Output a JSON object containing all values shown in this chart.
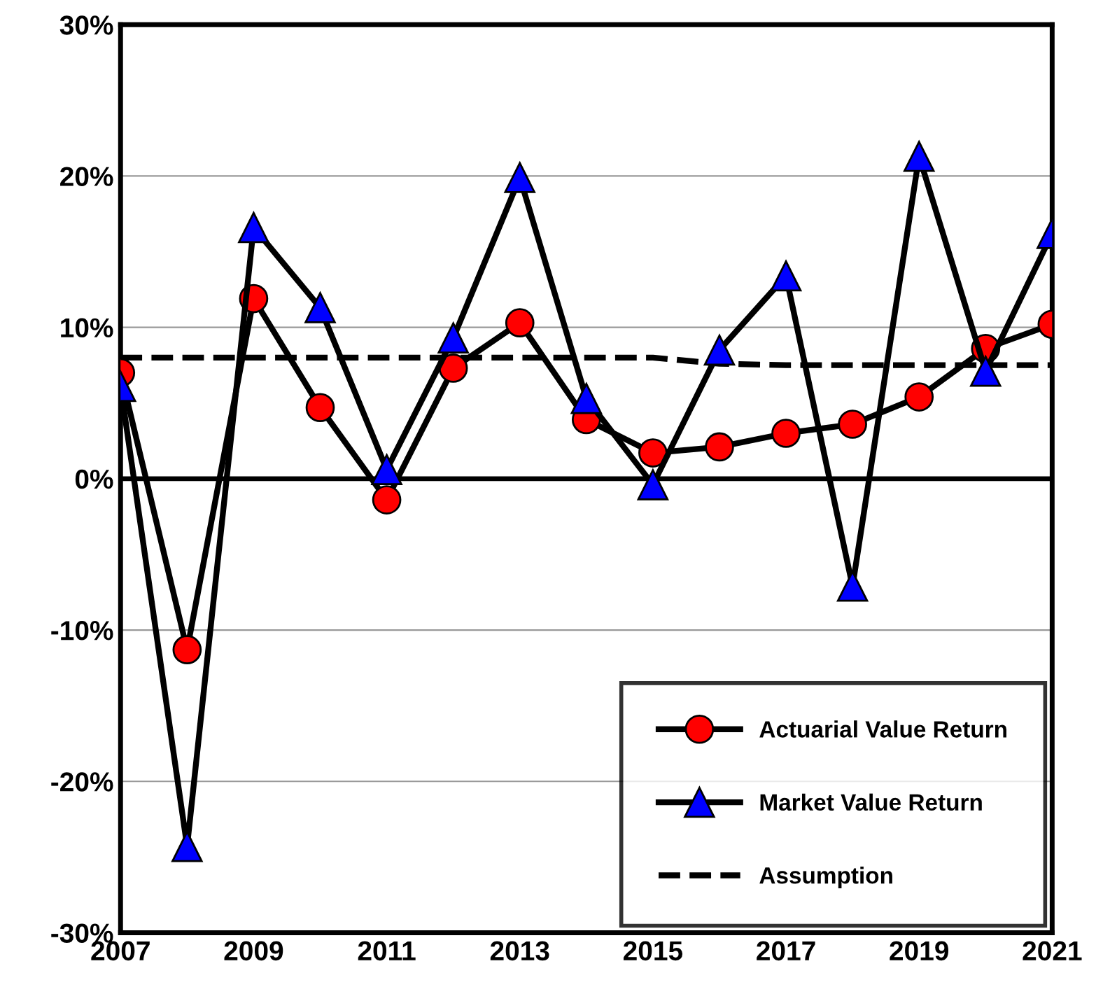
{
  "chart_data": {
    "type": "line",
    "x": [
      2007,
      2008,
      2009,
      2010,
      2011,
      2012,
      2013,
      2014,
      2015,
      2016,
      2017,
      2018,
      2019,
      2020,
      2021
    ],
    "series": [
      {
        "name": "Actuarial Value Return",
        "color": "#ff0000",
        "marker": "circle",
        "line_style": "solid",
        "values": [
          7.0,
          -11.3,
          11.9,
          4.7,
          -1.4,
          7.3,
          10.3,
          3.9,
          1.7,
          2.1,
          3.0,
          3.6,
          5.4,
          8.6,
          10.2
        ]
      },
      {
        "name": "Market Value Return",
        "color": "#0000ff",
        "marker": "triangle",
        "line_style": "solid",
        "values": [
          6.1,
          -24.3,
          16.6,
          11.3,
          0.6,
          9.3,
          19.9,
          5.3,
          -0.4,
          8.5,
          13.4,
          -7.1,
          21.3,
          7.1,
          16.2
        ]
      },
      {
        "name": "Assumption",
        "color": "#000000",
        "marker": "none",
        "line_style": "dashed",
        "values": [
          8.0,
          8.0,
          8.0,
          8.0,
          8.0,
          8.0,
          8.0,
          8.0,
          8.0,
          7.6,
          7.5,
          7.5,
          7.5,
          7.5,
          7.5
        ]
      }
    ],
    "xlim": [
      2007,
      2021
    ],
    "xticks": [
      2007,
      2009,
      2011,
      2013,
      2015,
      2017,
      2019,
      2021
    ],
    "ylim": [
      -30,
      30
    ],
    "yticks": [
      {
        "value": -30,
        "label": "-30%"
      },
      {
        "value": -20,
        "label": "-20%"
      },
      {
        "value": -10,
        "label": "-10%"
      },
      {
        "value": 0,
        "label": "0%"
      },
      {
        "value": 10,
        "label": "10%"
      },
      {
        "value": 20,
        "label": "20%"
      },
      {
        "value": 30,
        "label": "30%"
      }
    ],
    "grid": "y",
    "ref_lines": [
      {
        "axis": "y",
        "value": 0,
        "color": "#000000",
        "line_style": "solid"
      }
    ],
    "legend": "bottom right"
  }
}
